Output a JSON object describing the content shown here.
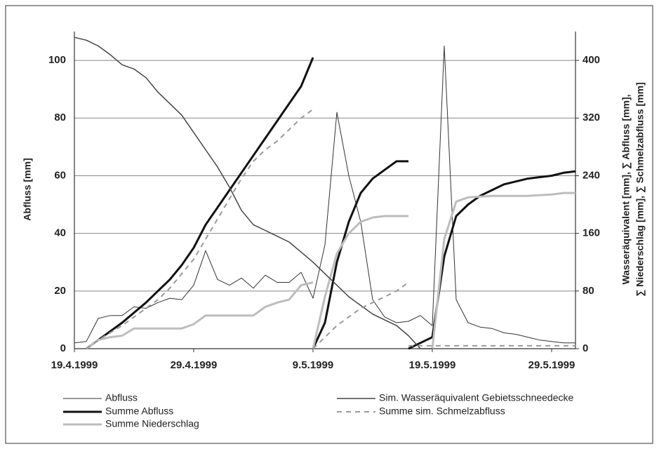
{
  "chart_data": {
    "type": "line",
    "ylabel": "Abfluss [mm]",
    "y2label": [
      "Wasseräquivalent [mm], ∑ Abfluss [mm],",
      "∑ Niederschlag [mm], ∑ Schmelzabfluss [mm]"
    ],
    "xlim": [
      "19.4.1999",
      "31.5.1999"
    ],
    "xticks": [
      "19.4.1999",
      "29.4.1999",
      "9.5.1999",
      "19.5.1999",
      "29.5.1999"
    ],
    "ylim": [
      0,
      110
    ],
    "yticks": [
      0,
      20,
      40,
      60,
      80,
      100
    ],
    "y2lim": [
      0,
      440
    ],
    "y2ticks": [
      0,
      80,
      160,
      240,
      320,
      400
    ],
    "grid": true,
    "x": [
      "19.4.1999",
      "20.4.1999",
      "21.4.1999",
      "22.4.1999",
      "23.4.1999",
      "24.4.1999",
      "25.4.1999",
      "26.4.1999",
      "27.4.1999",
      "28.4.1999",
      "29.4.1999",
      "30.4.1999",
      "1.5.1999",
      "2.5.1999",
      "3.5.1999",
      "4.5.1999",
      "5.5.1999",
      "6.5.1999",
      "7.5.1999",
      "8.5.1999",
      "9.5.1999",
      "10.5.1999",
      "11.5.1999",
      "12.5.1999",
      "13.5.1999",
      "14.5.1999",
      "15.5.1999",
      "16.5.1999",
      "17.5.1999",
      "18.5.1999",
      "19.5.1999",
      "20.5.1999",
      "21.5.1999",
      "22.5.1999",
      "23.5.1999",
      "24.5.1999",
      "25.5.1999",
      "26.5.1999",
      "27.5.1999",
      "28.5.1999",
      "29.5.1999",
      "30.5.1999",
      "31.5.1999"
    ],
    "series": [
      {
        "name": "Abfluss",
        "color": "#333333",
        "width": 1,
        "values": [
          2,
          2.5,
          10.5,
          11.5,
          11.5,
          14.5,
          14,
          16,
          17.5,
          17,
          22,
          34,
          24,
          22,
          24.5,
          21,
          25.5,
          23,
          23,
          26.5,
          17.5,
          36,
          82,
          60,
          44,
          17,
          11,
          9,
          9.5,
          11.5,
          8,
          105,
          17,
          9,
          7.5,
          7,
          5.5,
          5,
          4,
          3,
          2.5,
          2,
          2
        ]
      },
      {
        "name": "Summe Abfluss",
        "color": "#111111",
        "width": 3,
        "axis": "y2",
        "x": [
          "20.4.1999",
          "21.4.1999",
          "22.4.1999",
          "23.4.1999",
          "24.4.1999",
          "25.4.1999",
          "26.4.1999",
          "27.4.1999",
          "28.4.1999",
          "29.4.1999",
          "30.4.1999",
          "1.5.1999",
          "2.5.1999",
          "3.5.1999",
          "4.5.1999",
          "5.5.1999",
          "6.5.1999",
          "7.5.1999",
          "8.5.1999",
          "9.5.1999",
          "9.5.1999",
          "9.5.1999",
          "10.5.1999",
          "11.5.1999",
          "12.5.1999",
          "13.5.1999",
          "14.5.1999",
          "15.5.1999",
          "16.5.1999",
          "17.5.1999",
          "17.5.1999",
          "17.5.1999",
          "18.5.1999",
          "19.5.1999",
          "20.5.1999",
          "21.5.1999",
          "22.5.1999",
          "23.5.1999",
          "24.5.1999",
          "25.5.1999",
          "26.5.1999",
          "27.5.1999",
          "28.5.1999",
          "29.5.1999",
          "30.5.1999",
          "31.5.1999"
        ],
        "values": [
          0,
          12,
          24,
          36,
          50,
          64,
          80,
          96,
          116,
          140,
          172,
          196,
          220,
          244,
          268,
          292,
          316,
          340,
          364,
          404,
          null,
          0,
          36,
          120,
          176,
          216,
          236,
          248,
          260,
          260,
          null,
          0,
          8,
          16,
          128,
          184,
          200,
          212,
          220,
          228,
          232,
          236,
          238,
          240,
          244,
          246
        ]
      },
      {
        "name": "Summe Niederschlag",
        "color": "#bdbdbd",
        "width": 3,
        "axis": "y2",
        "x": [
          "20.4.1999",
          "21.4.1999",
          "22.4.1999",
          "23.4.1999",
          "24.4.1999",
          "25.4.1999",
          "26.4.1999",
          "27.4.1999",
          "28.4.1999",
          "29.4.1999",
          "30.4.1999",
          "1.5.1999",
          "2.5.1999",
          "3.5.1999",
          "4.5.1999",
          "5.5.1999",
          "6.5.1999",
          "7.5.1999",
          "8.5.1999",
          "9.5.1999",
          "9.5.1999",
          "9.5.1999",
          "10.5.1999",
          "11.5.1999",
          "12.5.1999",
          "13.5.1999",
          "14.5.1999",
          "15.5.1999",
          "16.5.1999",
          "17.5.1999",
          "18.5.1999",
          "19.5.1999",
          "20.5.1999",
          "21.5.1999",
          "22.5.1999",
          "23.5.1999",
          "24.5.1999",
          "25.5.1999",
          "26.5.1999",
          "27.5.1999",
          "28.5.1999",
          "29.5.1999",
          "30.5.1999",
          "31.5.1999"
        ],
        "values": [
          0,
          12,
          16,
          18,
          28,
          28,
          28,
          28,
          28,
          34,
          46,
          46,
          46,
          46,
          46,
          58,
          64,
          68,
          88,
          92,
          null,
          0,
          72,
          132,
          160,
          176,
          182,
          184,
          184,
          184,
          null,
          0,
          152,
          204,
          210,
          211,
          212,
          212,
          212,
          212,
          213,
          214,
          216,
          216
        ]
      },
      {
        "name": "Sim. Wasseräquivalent Gebietsschneedecke",
        "color": "#444444",
        "width": 1.5,
        "axis": "y2",
        "values": [
          432,
          428,
          420,
          408,
          394,
          388,
          376,
          356,
          340,
          324,
          300,
          276,
          252,
          224,
          192,
          172,
          164,
          156,
          148,
          134,
          120,
          104,
          88,
          72,
          60,
          48,
          40,
          32,
          18,
          0,
          0,
          null,
          null,
          null,
          null,
          null,
          null,
          null,
          null,
          null,
          null,
          null,
          null
        ]
      },
      {
        "name": "Summe sim. Schmelzabfluss",
        "color": "#9a9a9a",
        "width": 2,
        "dash": true,
        "axis": "y2",
        "x": [
          "20.4.1999",
          "21.4.1999",
          "22.4.1999",
          "23.4.1999",
          "24.4.1999",
          "25.4.1999",
          "26.4.1999",
          "27.4.1999",
          "28.4.1999",
          "29.4.1999",
          "30.4.1999",
          "1.5.1999",
          "2.5.1999",
          "3.5.1999",
          "4.5.1999",
          "5.5.1999",
          "6.5.1999",
          "7.5.1999",
          "8.5.1999",
          "9.5.1999",
          "9.5.1999",
          "9.5.1999",
          "10.5.1999",
          "11.5.1999",
          "12.5.1999",
          "13.5.1999",
          "14.5.1999",
          "15.5.1999",
          "16.5.1999",
          "17.5.1999",
          "17.5.1999",
          "17.5.1999",
          "18.5.1999",
          "19.5.1999",
          "20.5.1999",
          "21.5.1999",
          "22.5.1999",
          "23.5.1999",
          "24.5.1999",
          "25.5.1999",
          "26.5.1999",
          "27.5.1999",
          "28.5.1999",
          "29.5.1999",
          "30.5.1999",
          "31.5.1999"
        ],
        "values": [
          0,
          12,
          22,
          32,
          44,
          56,
          68,
          84,
          104,
          124,
          152,
          180,
          208,
          236,
          260,
          276,
          288,
          304,
          320,
          332,
          null,
          0,
          16,
          32,
          44,
          56,
          64,
          72,
          80,
          92,
          null,
          4,
          4,
          4,
          4,
          4,
          4,
          4,
          4,
          4,
          4,
          4,
          4,
          4,
          4,
          4
        ]
      }
    ]
  }
}
